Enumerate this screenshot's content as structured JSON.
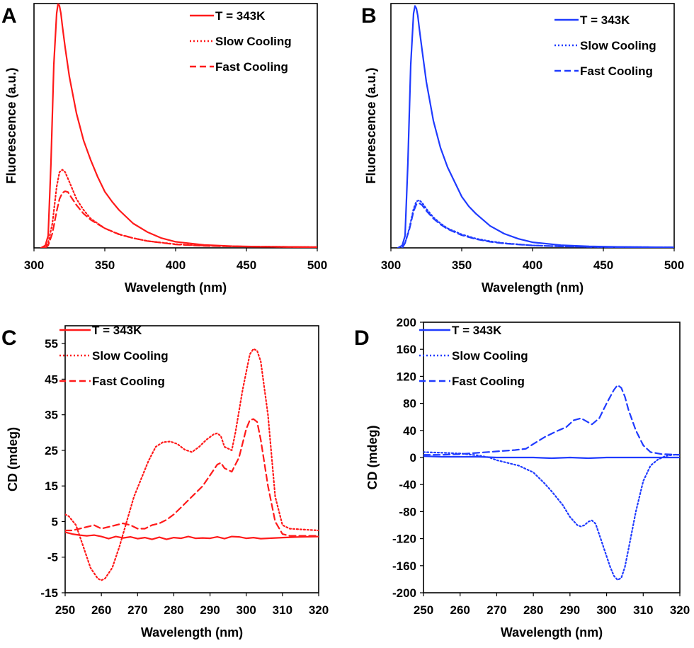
{
  "colors": {
    "red": "#ff1a1a",
    "blue": "#1f3bff"
  },
  "chart_data": [
    {
      "panel": "A",
      "type": "line",
      "color": "#ff1a1a",
      "xlabel": "Wavelength (nm)",
      "ylabel": "Fluorescence (a.u.)",
      "xlim": [
        300,
        500
      ],
      "ylim": [
        0,
        1.0
      ],
      "xticks": [
        300,
        350,
        400,
        450,
        500
      ],
      "yticks": [],
      "grid": false,
      "legend": "top-right",
      "series": [
        {
          "name": "T = 343K",
          "style": "solid",
          "x": [
            305,
            308,
            310,
            312,
            314,
            316,
            317,
            318,
            319,
            320,
            322,
            325,
            330,
            335,
            340,
            345,
            350,
            355,
            360,
            370,
            380,
            390,
            400,
            420,
            440,
            460,
            480,
            500
          ],
          "y": [
            0,
            0.01,
            0.05,
            0.35,
            0.75,
            0.96,
            1.0,
            0.99,
            0.96,
            0.91,
            0.82,
            0.7,
            0.55,
            0.44,
            0.36,
            0.29,
            0.23,
            0.19,
            0.155,
            0.1,
            0.065,
            0.04,
            0.025,
            0.012,
            0.007,
            0.005,
            0.004,
            0.003
          ]
        },
        {
          "name": "Slow Cooling",
          "style": "dotted",
          "x": [
            307,
            310,
            313,
            316,
            318,
            320,
            322,
            325,
            330,
            335,
            340,
            350,
            360,
            370,
            380,
            400,
            420,
            440,
            460,
            480,
            500
          ],
          "y": [
            0,
            0.02,
            0.1,
            0.25,
            0.31,
            0.32,
            0.31,
            0.27,
            0.2,
            0.155,
            0.12,
            0.08,
            0.055,
            0.04,
            0.028,
            0.015,
            0.009,
            0.006,
            0.005,
            0.004,
            0.003
          ]
        },
        {
          "name": "Fast Cooling",
          "style": "dashed",
          "x": [
            308,
            310,
            313,
            316,
            318,
            320,
            322,
            324,
            326,
            330,
            335,
            340,
            350,
            360,
            370,
            380,
            400,
            420,
            440,
            460,
            480,
            500
          ],
          "y": [
            0,
            0.01,
            0.06,
            0.15,
            0.2,
            0.225,
            0.232,
            0.228,
            0.21,
            0.175,
            0.14,
            0.115,
            0.08,
            0.056,
            0.04,
            0.028,
            0.014,
            0.008,
            0.006,
            0.005,
            0.004,
            0.003
          ]
        }
      ]
    },
    {
      "panel": "B",
      "type": "line",
      "color": "#1f3bff",
      "xlabel": "Wavelength (nm)",
      "ylabel": "Fluorescence (a.u.)",
      "xlim": [
        300,
        500
      ],
      "ylim": [
        0,
        1.0
      ],
      "xticks": [
        300,
        350,
        400,
        450,
        500
      ],
      "yticks": [],
      "grid": false,
      "legend": "top-right",
      "series": [
        {
          "name": "T = 343K",
          "style": "solid",
          "x": [
            305,
            308,
            310,
            312,
            314,
            316,
            317,
            318,
            319,
            320,
            322,
            325,
            330,
            335,
            340,
            345,
            350,
            355,
            360,
            370,
            380,
            390,
            400,
            420,
            440,
            460,
            480,
            500
          ],
          "y": [
            0,
            0.01,
            0.05,
            0.35,
            0.75,
            0.96,
            0.99,
            0.98,
            0.95,
            0.9,
            0.81,
            0.68,
            0.52,
            0.41,
            0.33,
            0.27,
            0.21,
            0.17,
            0.14,
            0.09,
            0.058,
            0.037,
            0.023,
            0.011,
            0.006,
            0.004,
            0.003,
            0.002
          ]
        },
        {
          "name": "Slow Cooling",
          "style": "dotted",
          "x": [
            308,
            310,
            313,
            316,
            318,
            320,
            322,
            325,
            330,
            335,
            340,
            350,
            360,
            370,
            380,
            400,
            420,
            440,
            460,
            480,
            500
          ],
          "y": [
            0,
            0.02,
            0.08,
            0.16,
            0.19,
            0.195,
            0.185,
            0.16,
            0.125,
            0.1,
            0.08,
            0.055,
            0.038,
            0.027,
            0.019,
            0.01,
            0.006,
            0.004,
            0.003,
            0.003,
            0.002
          ]
        },
        {
          "name": "Fast Cooling",
          "style": "dashed",
          "x": [
            308,
            310,
            313,
            316,
            318,
            320,
            322,
            325,
            330,
            335,
            340,
            350,
            360,
            370,
            380,
            400,
            420,
            440,
            460,
            480,
            500
          ],
          "y": [
            0,
            0.02,
            0.075,
            0.15,
            0.178,
            0.183,
            0.175,
            0.152,
            0.12,
            0.096,
            0.077,
            0.052,
            0.036,
            0.025,
            0.018,
            0.01,
            0.006,
            0.004,
            0.003,
            0.003,
            0.002
          ]
        }
      ]
    },
    {
      "panel": "C",
      "type": "line",
      "color": "#ff1a1a",
      "xlabel": "Wavelength (nm)",
      "ylabel": "CD (mdeg)",
      "xlim": [
        250,
        320
      ],
      "ylim": [
        -15,
        60
      ],
      "xticks": [
        250,
        260,
        270,
        280,
        290,
        300,
        310,
        320
      ],
      "yticks": [
        -15,
        -5,
        5,
        15,
        25,
        35,
        45,
        55
      ],
      "grid": false,
      "legend": "top-left",
      "series": [
        {
          "name": "T = 343K",
          "style": "solid",
          "x": [
            250,
            252,
            254,
            256,
            258,
            260,
            262,
            264,
            266,
            268,
            270,
            272,
            274,
            276,
            278,
            280,
            282,
            284,
            286,
            288,
            290,
            292,
            294,
            296,
            298,
            300,
            302,
            304,
            306,
            308,
            310,
            315,
            320
          ],
          "y": [
            2,
            1.5,
            1.2,
            1,
            1.2,
            0.8,
            0.2,
            0.8,
            0.4,
            0.7,
            0.2,
            0.5,
            0,
            0.6,
            0,
            0.5,
            0.3,
            0.8,
            0.3,
            0.4,
            0.3,
            0.7,
            0.2,
            0.8,
            0.7,
            0.3,
            0.5,
            0.2,
            0.3,
            0.4,
            0.5,
            0.7,
            0.8
          ]
        },
        {
          "name": "Slow Cooling",
          "style": "dotted",
          "x": [
            250,
            251,
            253,
            255,
            257,
            259,
            260,
            261,
            263,
            265,
            267,
            269,
            271,
            273,
            275,
            277,
            279,
            281,
            283,
            285,
            287,
            289,
            291,
            292,
            293,
            294,
            296,
            297,
            299,
            301,
            302,
            303,
            304,
            306,
            308,
            310,
            312,
            315,
            320
          ],
          "y": [
            7,
            6.5,
            4,
            -2,
            -8,
            -11,
            -11.5,
            -11,
            -8,
            -2,
            5,
            12,
            17,
            22,
            26,
            27.3,
            27.5,
            26.8,
            25.2,
            24.5,
            26,
            28,
            29.5,
            29.8,
            29,
            26,
            25,
            30,
            42,
            52,
            53.5,
            53,
            50,
            35,
            12,
            4,
            3,
            2.8,
            2.5
          ]
        },
        {
          "name": "Fast Cooling",
          "style": "dashed",
          "x": [
            250,
            252,
            254,
            256,
            258,
            260,
            262,
            264,
            266,
            268,
            270,
            272,
            274,
            276,
            278,
            280,
            282,
            284,
            286,
            288,
            290,
            292,
            293,
            294,
            296,
            298,
            300,
            301,
            302,
            303,
            304,
            306,
            308,
            310,
            312,
            315,
            320
          ],
          "y": [
            2.5,
            2.5,
            3,
            3.5,
            4,
            3,
            3.5,
            4,
            4.5,
            4,
            3,
            3,
            4,
            4.5,
            5.5,
            7,
            9,
            11,
            13,
            15,
            18,
            21,
            21.5,
            20,
            19,
            23,
            31,
            33.5,
            33.8,
            33,
            28,
            15,
            5,
            1.5,
            1,
            1,
            1
          ]
        }
      ]
    },
    {
      "panel": "D",
      "type": "line",
      "color": "#1f3bff",
      "xlabel": "Wavelength (nm)",
      "ylabel": "CD (mdeg)",
      "xlim": [
        250,
        320
      ],
      "ylim": [
        -200,
        200
      ],
      "xticks": [
        250,
        260,
        270,
        280,
        290,
        300,
        310,
        320
      ],
      "yticks": [
        -200,
        -160,
        -120,
        -80,
        -40,
        0,
        40,
        80,
        120,
        160,
        200
      ],
      "grid": false,
      "legend": "top-left",
      "series": [
        {
          "name": "T = 343K",
          "style": "solid",
          "x": [
            250,
            255,
            260,
            265,
            270,
            275,
            280,
            285,
            290,
            295,
            300,
            305,
            310,
            315,
            320
          ],
          "y": [
            2,
            1,
            1,
            1,
            0,
            0,
            0,
            -1,
            0,
            -1,
            0,
            0,
            0,
            0,
            0
          ]
        },
        {
          "name": "Slow Cooling",
          "style": "dotted",
          "x": [
            250,
            255,
            260,
            265,
            268,
            270,
            273,
            276,
            280,
            283,
            285,
            288,
            290,
            292,
            293,
            294,
            295,
            296,
            297,
            299,
            301,
            302,
            303,
            304,
            305,
            306,
            308,
            310,
            312,
            314,
            316,
            318,
            320
          ],
          "y": [
            8,
            7,
            6,
            3,
            0,
            -4,
            -8,
            -12,
            -22,
            -38,
            -50,
            -70,
            -88,
            -100,
            -102,
            -100,
            -95,
            -93,
            -98,
            -130,
            -162,
            -175,
            -181,
            -178,
            -162,
            -135,
            -80,
            -35,
            -12,
            -3,
            2,
            4,
            4
          ]
        },
        {
          "name": "Fast Cooling",
          "style": "dashed",
          "x": [
            250,
            255,
            260,
            265,
            270,
            275,
            278,
            280,
            283,
            286,
            289,
            291,
            293,
            295,
            296,
            298,
            300,
            302,
            303,
            304,
            305,
            306,
            308,
            310,
            312,
            315,
            320
          ],
          "y": [
            4,
            4,
            5,
            7,
            9,
            11,
            13,
            20,
            30,
            38,
            45,
            55,
            58,
            52,
            49,
            58,
            80,
            100,
            107,
            103,
            90,
            70,
            40,
            18,
            8,
            5,
            4
          ]
        }
      ]
    }
  ]
}
